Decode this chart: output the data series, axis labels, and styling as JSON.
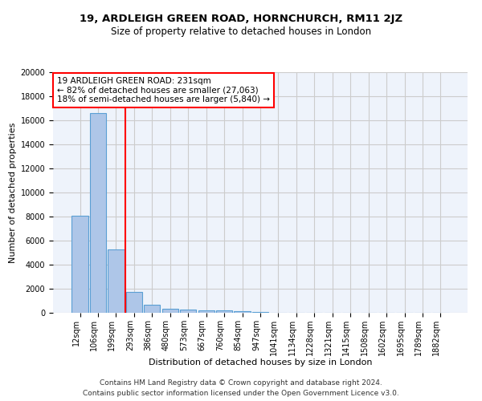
{
  "title1": "19, ARDLEIGH GREEN ROAD, HORNCHURCH, RM11 2JZ",
  "title2": "Size of property relative to detached houses in London",
  "xlabel": "Distribution of detached houses by size in London",
  "ylabel": "Number of detached properties",
  "categories": [
    "12sqm",
    "106sqm",
    "199sqm",
    "293sqm",
    "386sqm",
    "480sqm",
    "573sqm",
    "667sqm",
    "760sqm",
    "854sqm",
    "947sqm",
    "1041sqm",
    "1134sqm",
    "1228sqm",
    "1321sqm",
    "1415sqm",
    "1508sqm",
    "1602sqm",
    "1695sqm",
    "1789sqm",
    "1882sqm"
  ],
  "values": [
    8050,
    16600,
    5300,
    1750,
    650,
    360,
    270,
    210,
    185,
    130,
    60,
    30,
    15,
    8,
    5,
    3,
    2,
    1,
    1,
    1,
    1
  ],
  "bar_color": "#aec6e8",
  "bar_edge_color": "#5a9fd4",
  "vline_x": 2.5,
  "vline_color": "red",
  "annotation_text": "19 ARDLEIGH GREEN ROAD: 231sqm\n← 82% of detached houses are smaller (27,063)\n18% of semi-detached houses are larger (5,840) →",
  "annotation_box_color": "white",
  "annotation_box_edge_color": "red",
  "ylim": [
    0,
    20000
  ],
  "yticks": [
    0,
    2000,
    4000,
    6000,
    8000,
    10000,
    12000,
    14000,
    16000,
    18000,
    20000
  ],
  "grid_color": "#cccccc",
  "bg_color": "#eef3fb",
  "footnote1": "Contains HM Land Registry data © Crown copyright and database right 2024.",
  "footnote2": "Contains public sector information licensed under the Open Government Licence v3.0.",
  "title1_fontsize": 9.5,
  "title2_fontsize": 8.5,
  "xlabel_fontsize": 8,
  "ylabel_fontsize": 8,
  "tick_fontsize": 7,
  "annot_fontsize": 7.5,
  "footnote_fontsize": 6.5
}
